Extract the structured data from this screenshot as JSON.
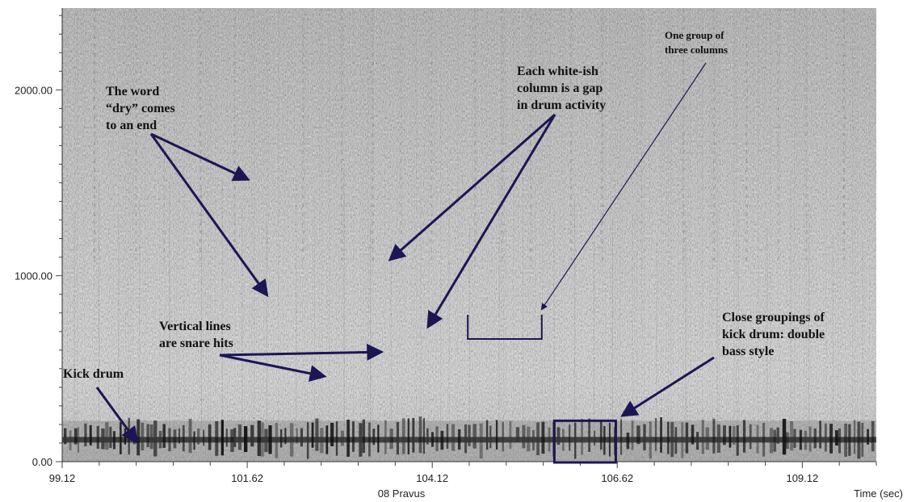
{
  "chart_data": {
    "type": "heatmap",
    "title": "",
    "xlabel": "Time (sec)",
    "ylabel": "",
    "caption": "08 Pravus",
    "xlim": [
      99.12,
      110.12
    ],
    "ylim": [
      0,
      2440
    ],
    "x_ticks": [
      99.12,
      101.62,
      104.12,
      106.62,
      109.12
    ],
    "x_tick_labels": [
      "99.12",
      "101.62",
      "104.12",
      "106.62",
      "109.12"
    ],
    "y_ticks": [
      0,
      1000,
      2000
    ],
    "y_tick_labels": [
      "0.00",
      "1000.00",
      "2000.00"
    ],
    "colormap": "grayscale",
    "annotations": [
      {
        "name": "word-dry",
        "lines": [
          "The word",
          "“dry” comes",
          "to an end"
        ],
        "arrows_to": [
          [
            101.62,
            1520
          ],
          [
            101.88,
            900
          ]
        ]
      },
      {
        "name": "snare-hits",
        "lines": [
          "Vertical lines",
          "are snare hits"
        ],
        "arrows_to": [
          [
            102.65,
            460
          ],
          [
            103.42,
            590
          ]
        ]
      },
      {
        "name": "kick-drum",
        "lines": [
          "Kick drum"
        ],
        "arrows_to": [
          [
            100.12,
            110
          ]
        ]
      },
      {
        "name": "white-columns",
        "lines": [
          "Each white-ish",
          "column is a gap",
          "in drum activity"
        ],
        "arrows_to": [
          [
            103.56,
            1090
          ],
          [
            104.07,
            730
          ]
        ]
      },
      {
        "name": "three-columns",
        "lines": [
          "One group of",
          "three columns"
        ],
        "arrows_to": [
          [
            105.6,
            820
          ]
        ]
      },
      {
        "name": "double-bass",
        "lines": [
          "Close groupings of",
          "kick drum: double",
          "bass style"
        ],
        "arrows_to": [
          [
            106.7,
            250
          ]
        ]
      }
    ],
    "bracket": {
      "x_start": 104.6,
      "x_end": 105.6
    },
    "highlight_box": {
      "x_start": 105.77,
      "x_end": 106.6,
      "y_start": 0,
      "y_end": 220
    }
  }
}
